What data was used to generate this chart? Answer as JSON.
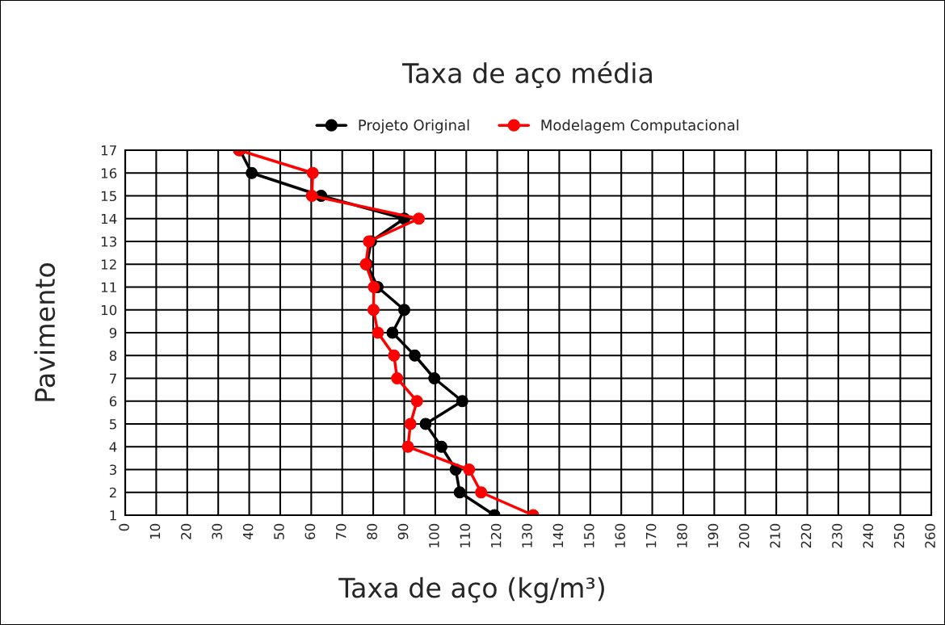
{
  "chart_data": {
    "type": "line",
    "title": "Taxa de aço média",
    "xlabel": "Taxa de aço (kg/m³)",
    "ylabel": "Pavimento",
    "xlim": [
      0,
      260
    ],
    "xticks": [
      0,
      10,
      20,
      30,
      40,
      50,
      60,
      70,
      80,
      90,
      100,
      110,
      120,
      130,
      140,
      150,
      160,
      170,
      180,
      190,
      200,
      210,
      220,
      230,
      240,
      250,
      260
    ],
    "ylim": [
      1,
      17
    ],
    "yticks": [
      1,
      2,
      3,
      4,
      5,
      6,
      7,
      8,
      9,
      10,
      11,
      12,
      13,
      14,
      15,
      16,
      17
    ],
    "grid": true,
    "legend": "top",
    "marker": "circle",
    "line_style": "solid",
    "series": [
      {
        "name": "Projeto Original",
        "color": "#000000",
        "x": [
          119.1,
          107.9,
          106.6,
          102,
          96.9,
          108.7,
          99.7,
          93.4,
          86.2,
          90,
          81.4,
          78,
          79.3,
          90,
          63.2,
          40.8,
          37
        ],
        "values": [
          1,
          2,
          3,
          4,
          5,
          6,
          7,
          8,
          9,
          10,
          11,
          12,
          13,
          14,
          15,
          16,
          17
        ]
      },
      {
        "name": "Modelagem Computacional",
        "color": "#ff0000",
        "x": [
          131.6,
          114.8,
          110.9,
          91.2,
          92,
          94.1,
          87.7,
          86.7,
          81.5,
          80.1,
          80.2,
          77.6,
          78.6,
          94.7,
          60.2,
          60.5,
          36.7
        ],
        "values": [
          1,
          2,
          3,
          4,
          5,
          6,
          7,
          8,
          9,
          10,
          11,
          12,
          13,
          14,
          15,
          16,
          17
        ]
      }
    ]
  }
}
